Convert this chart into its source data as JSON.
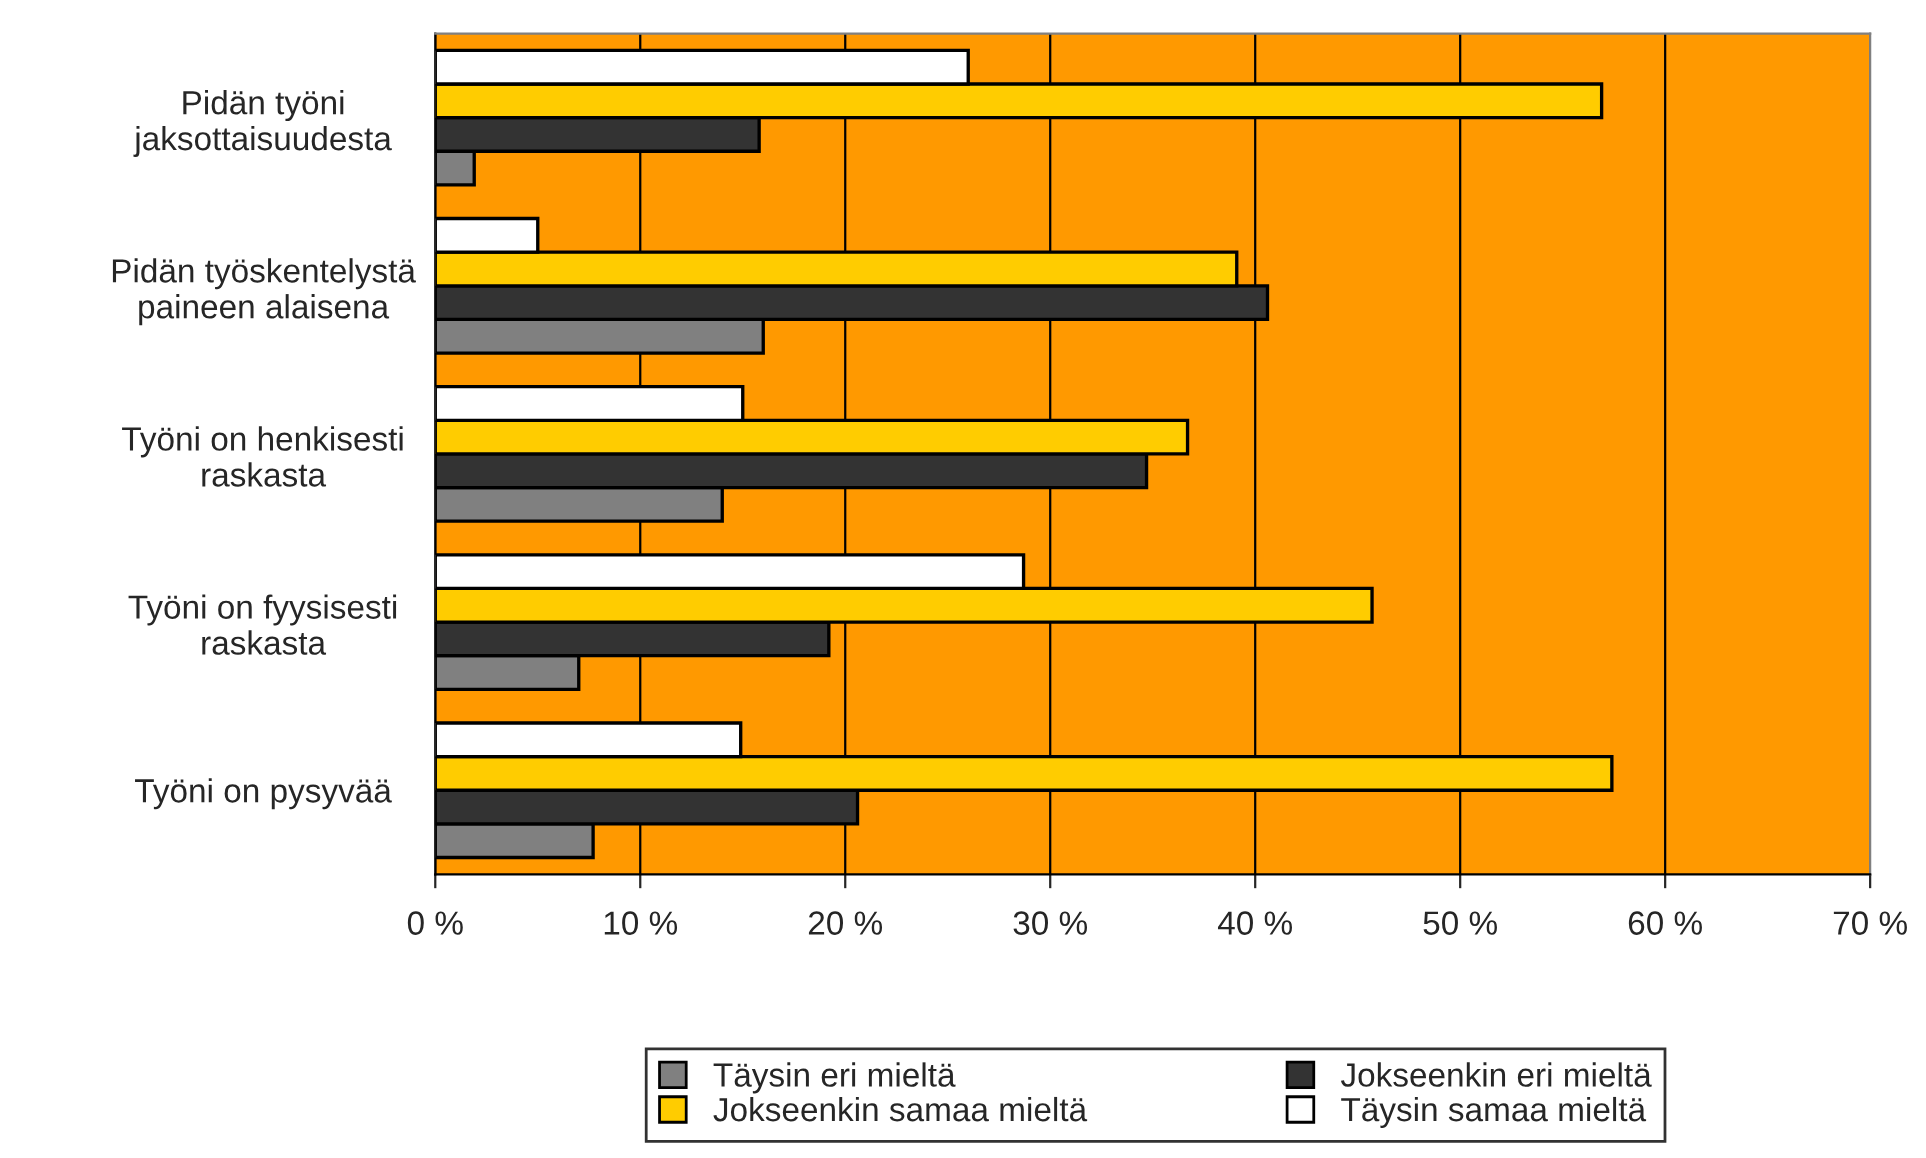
{
  "chart_data": {
    "type": "bar",
    "orientation": "horizontal",
    "categories": [
      "Pidän työni\njaksottaisuudesta",
      "Pidän työskentelystä\npaineen alaisena",
      "Työni on henkisesti\nraskasta",
      "Työni on fyysisesti\nraskasta",
      "Työni on pysyvää"
    ],
    "series": [
      {
        "name": "Täysin eri mieltä",
        "color": "#808080",
        "values": [
          1.9,
          16.0,
          14.0,
          7.0,
          7.7
        ]
      },
      {
        "name": "Jokseenkin eri mieltä",
        "color": "#333333",
        "values": [
          15.8,
          40.6,
          34.7,
          19.2,
          20.6
        ]
      },
      {
        "name": "Jokseenkin samaa mieltä",
        "color": "#ffcc00",
        "values": [
          56.9,
          39.1,
          36.7,
          45.7,
          57.4
        ]
      },
      {
        "name": "Täysin samaa mieltä",
        "color": "#ffffff",
        "values": [
          26.0,
          5.0,
          15.0,
          28.7,
          14.9
        ]
      }
    ],
    "xlim": [
      0,
      70
    ],
    "xticks": [
      {
        "value": 0,
        "label": "0 %"
      },
      {
        "value": 10,
        "label": "10 %"
      },
      {
        "value": 20,
        "label": "20 %"
      },
      {
        "value": 30,
        "label": "30 %"
      },
      {
        "value": 40,
        "label": "40 %"
      },
      {
        "value": 50,
        "label": "50 %"
      },
      {
        "value": 60,
        "label": "60 %"
      },
      {
        "value": 70,
        "label": "70 %"
      }
    ],
    "grid": "x",
    "legend": "bottom"
  }
}
